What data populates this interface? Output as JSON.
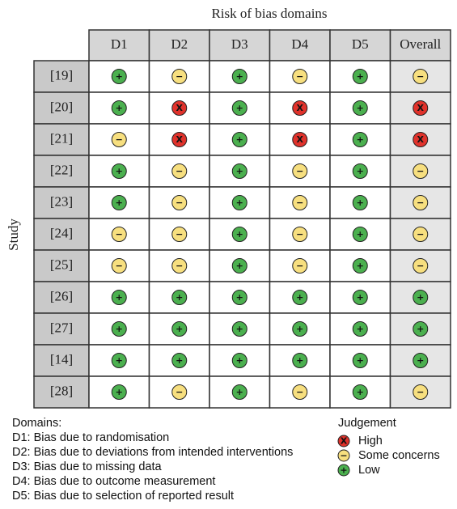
{
  "header": {
    "title": "Risk of bias domains",
    "y_label": "Study"
  },
  "table": {
    "columns": [
      "D1",
      "D2",
      "D3",
      "D4",
      "D5",
      "Overall"
    ],
    "rows": [
      {
        "study": "[19]",
        "cells": [
          "+",
          "−",
          "+",
          "−",
          "+",
          "−"
        ]
      },
      {
        "study": "[20]",
        "cells": [
          "+",
          "X",
          "+",
          "X",
          "+",
          "X"
        ]
      },
      {
        "study": "[21]",
        "cells": [
          "−",
          "X",
          "+",
          "X",
          "+",
          "X"
        ]
      },
      {
        "study": "[22]",
        "cells": [
          "+",
          "−",
          "+",
          "−",
          "+",
          "−"
        ]
      },
      {
        "study": "[23]",
        "cells": [
          "+",
          "−",
          "+",
          "−",
          "+",
          "−"
        ]
      },
      {
        "study": "[24]",
        "cells": [
          "−",
          "−",
          "+",
          "−",
          "+",
          "−"
        ]
      },
      {
        "study": "[25]",
        "cells": [
          "−",
          "−",
          "+",
          "−",
          "+",
          "−"
        ]
      },
      {
        "study": "[26]",
        "cells": [
          "+",
          "+",
          "+",
          "+",
          "+",
          "+"
        ]
      },
      {
        "study": "[27]",
        "cells": [
          "+",
          "+",
          "+",
          "+",
          "+",
          "+"
        ]
      },
      {
        "study": "[14]",
        "cells": [
          "+",
          "+",
          "+",
          "+",
          "+",
          "+"
        ]
      },
      {
        "study": "[28]",
        "cells": [
          "+",
          "−",
          "+",
          "−",
          "+",
          "−"
        ]
      }
    ]
  },
  "domains": {
    "title": "Domains:",
    "items": [
      "D1: Bias due to randomisation",
      "D2: Bias due to deviations from intended interventions",
      "D3: Bias due to missing data",
      "D4: Bias due to outcome measurement",
      "D5: Bias due to selection of reported result"
    ]
  },
  "legend": {
    "title": "Judgement",
    "items": [
      {
        "symbol": "X",
        "label": "High",
        "color": "#e0322b"
      },
      {
        "symbol": "−",
        "label": "Some concerns",
        "color": "#f7df7f"
      },
      {
        "symbol": "+",
        "label": "Low",
        "color": "#4bb04f"
      }
    ]
  }
}
